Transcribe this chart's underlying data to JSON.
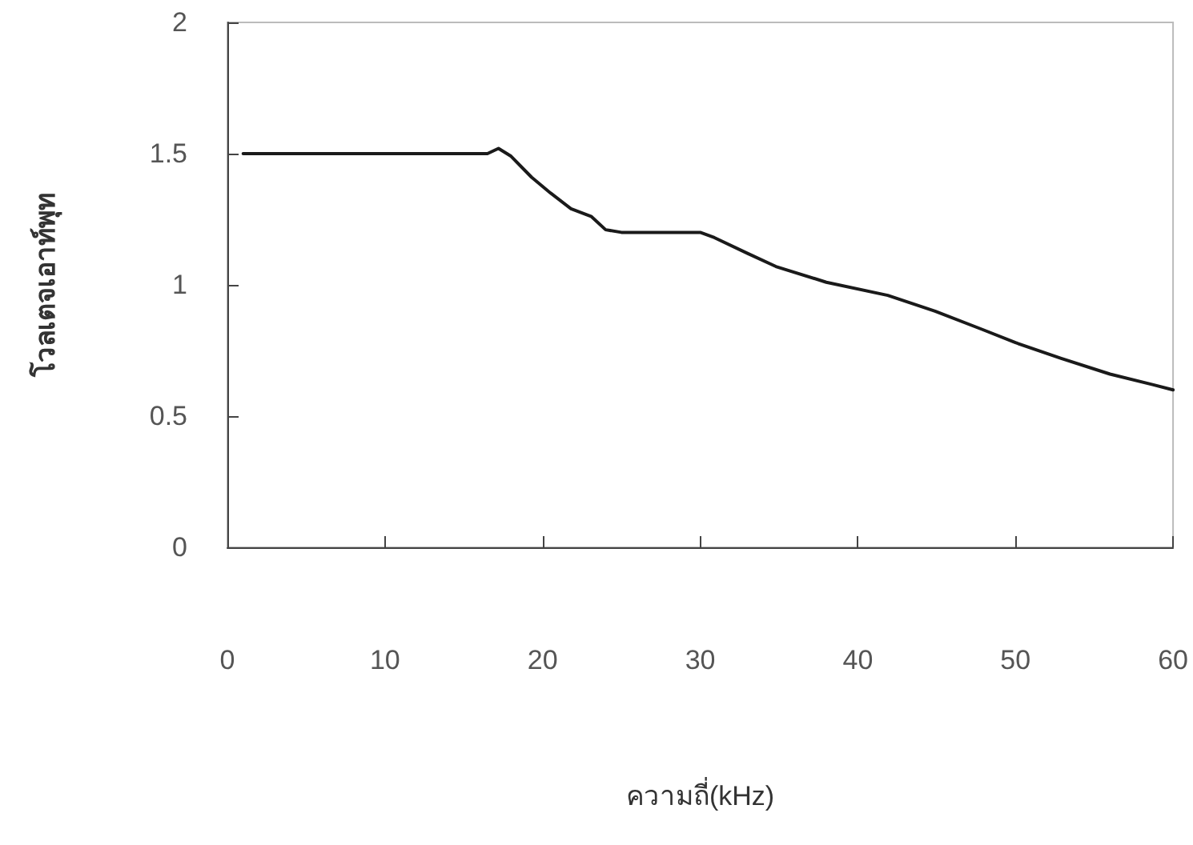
{
  "chart_data": {
    "type": "line",
    "xlabel": "ความถี่(kHz)",
    "ylabel": "โวลเตจเอาท์พุท",
    "x": [
      1,
      10,
      16.5,
      17.2,
      18,
      19.3,
      20.5,
      21.8,
      23.1,
      24,
      25,
      27,
      30,
      30.9,
      33,
      34.8,
      38,
      41.9,
      44.9,
      47.9,
      50,
      52.9,
      56,
      58.7,
      60
    ],
    "series": [
      {
        "color": "#1a1a1a",
        "values": [
          1.5,
          1.5,
          1.5,
          1.52,
          1.49,
          1.41,
          1.35,
          1.29,
          1.26,
          1.21,
          1.2,
          1.2,
          1.2,
          1.18,
          1.12,
          1.07,
          1.01,
          0.96,
          0.9,
          0.83,
          0.78,
          0.72,
          0.66,
          0.62,
          0.6
        ]
      }
    ],
    "xlim": [
      0,
      60
    ],
    "xticks": [
      0,
      10,
      20,
      30,
      40,
      50,
      60
    ],
    "ylim": [
      0,
      2
    ],
    "yticks": [
      0,
      0.5,
      1,
      1.5,
      2
    ],
    "grid": false,
    "marker": "none",
    "line_style": "solid"
  }
}
